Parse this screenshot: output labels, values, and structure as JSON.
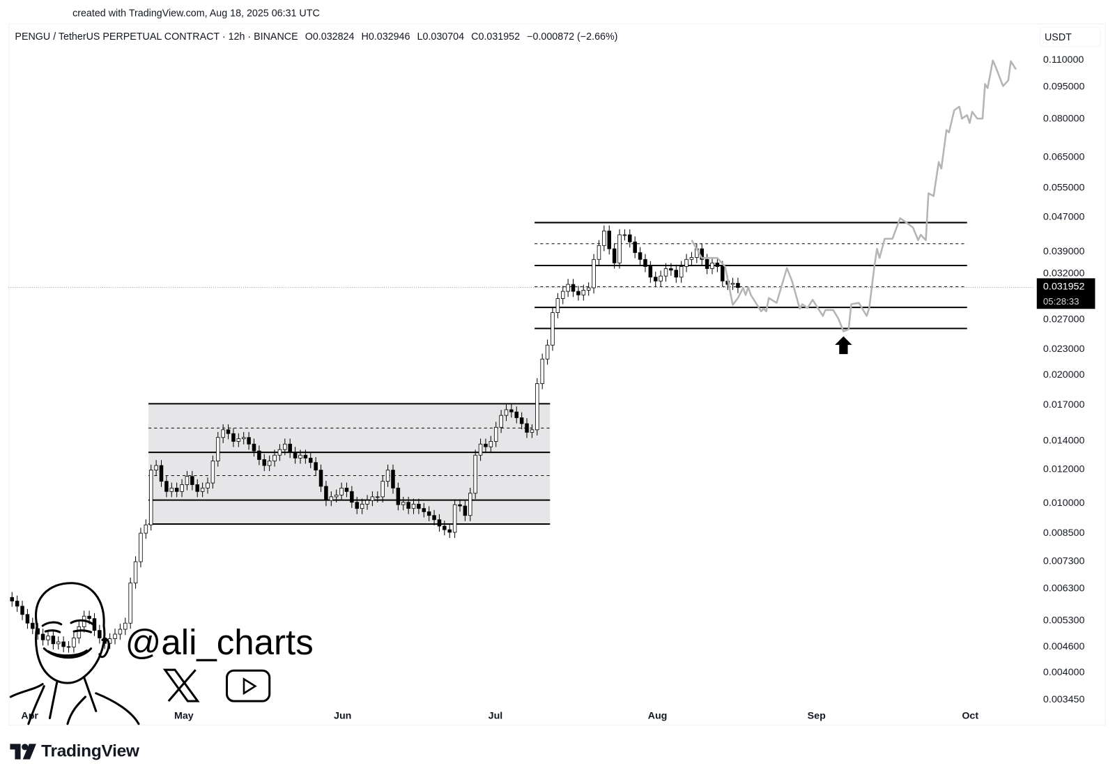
{
  "header": {
    "created_with": "created with TradingView.com, Aug 18, 2025 06:31 UTC",
    "symbol": "PENGU / TetherUS PERPETUAL CONTRACT · 12h · BINANCE",
    "open": "O0.032824",
    "high": "H0.032946",
    "low": "L0.030704",
    "close": "C0.031952",
    "change": "−0.000872 (−2.66%)"
  },
  "price_axis": {
    "currency_button": "USDT",
    "last_price": "0.031952",
    "countdown": "05:28:33"
  },
  "watermark": {
    "handle": "@ali_charts",
    "icons": [
      "avatar-illustration",
      "x-logo-icon",
      "youtube-icon"
    ]
  },
  "footer": {
    "brand": "TradingView"
  },
  "colors": {
    "candle_up_body": "#ffffff",
    "candle_down_body": "#000000",
    "candle_outline": "#000000",
    "projection": "#b4b4b4",
    "range_fill": "#e6e6e8",
    "level_line": "#000000",
    "last_price_label": "#000000"
  },
  "chart_data": {
    "type": "candlestick",
    "scale": "log",
    "ylim": [
      0.00345,
      0.11
    ],
    "xlim": [
      "2025-03-30",
      "2025-10-20"
    ],
    "grid": false,
    "y_ticks": [
      "0.110000",
      "0.095000",
      "0.080000",
      "0.065000",
      "0.055000",
      "0.047000",
      "0.039000",
      "0.032000",
      "0.027000",
      "0.023000",
      "0.020000",
      "0.017000",
      "0.014000",
      "0.012000",
      "0.010000",
      "0.008500",
      "0.007300",
      "0.006300",
      "0.005300",
      "0.004600",
      "0.004000",
      "0.003450"
    ],
    "x_ticks": [
      {
        "label": "Apr",
        "date": "2025-04-01"
      },
      {
        "label": "May",
        "date": "2025-05-01"
      },
      {
        "label": "Jun",
        "date": "2025-06-01"
      },
      {
        "label": "Jul",
        "date": "2025-07-01"
      },
      {
        "label": "Aug",
        "date": "2025-08-01"
      },
      {
        "label": "Sep",
        "date": "2025-09-01"
      },
      {
        "label": "Oct",
        "date": "2025-10-01"
      }
    ],
    "last_price": 0.031952,
    "candles_close": [
      [
        "2025-03-30",
        0.00586
      ],
      [
        "2025-03-31",
        0.0057
      ],
      [
        "2025-04-01",
        0.00545
      ],
      [
        "2025-04-02",
        0.0052
      ],
      [
        "2025-04-03",
        0.00505
      ],
      [
        "2025-04-04",
        0.0049
      ],
      [
        "2025-04-05",
        0.00475
      ],
      [
        "2025-04-06",
        0.00485
      ],
      [
        "2025-04-07",
        0.00465
      ],
      [
        "2025-04-08",
        0.0047
      ],
      [
        "2025-04-09",
        0.00458
      ],
      [
        "2025-04-10",
        0.00457
      ],
      [
        "2025-04-11",
        0.0048
      ],
      [
        "2025-04-12",
        0.0051
      ],
      [
        "2025-04-13",
        0.0054
      ],
      [
        "2025-04-14",
        0.00533
      ],
      [
        "2025-04-15",
        0.005
      ],
      [
        "2025-04-16",
        0.0048
      ],
      [
        "2025-04-17",
        0.00466
      ],
      [
        "2025-04-18",
        0.00478
      ],
      [
        "2025-04-19",
        0.0049
      ],
      [
        "2025-04-20",
        0.00503
      ],
      [
        "2025-04-21",
        0.0052
      ],
      [
        "2025-04-22",
        0.00646
      ],
      [
        "2025-04-23",
        0.00725
      ],
      [
        "2025-04-24",
        0.00846
      ],
      [
        "2025-04-25",
        0.00885
      ],
      [
        "2025-04-26",
        0.0119
      ],
      [
        "2025-04-27",
        0.0122
      ],
      [
        "2025-04-28",
        0.0112
      ],
      [
        "2025-04-29",
        0.0106
      ],
      [
        "2025-04-30",
        0.0108
      ],
      [
        "2025-05-01",
        0.0106
      ],
      [
        "2025-05-02",
        0.011
      ],
      [
        "2025-05-03",
        0.0115
      ],
      [
        "2025-05-04",
        0.011
      ],
      [
        "2025-05-05",
        0.0106
      ],
      [
        "2025-05-06",
        0.0108
      ],
      [
        "2025-05-07",
        0.0111
      ],
      [
        "2025-05-08",
        0.0125
      ],
      [
        "2025-05-09",
        0.0142
      ],
      [
        "2025-05-10",
        0.0148
      ],
      [
        "2025-05-11",
        0.0145
      ],
      [
        "2025-05-12",
        0.0139
      ],
      [
        "2025-05-13",
        0.0141
      ],
      [
        "2025-05-14",
        0.0142
      ],
      [
        "2025-05-15",
        0.0137
      ],
      [
        "2025-05-16",
        0.0132
      ],
      [
        "2025-05-17",
        0.0126
      ],
      [
        "2025-05-18",
        0.0122
      ],
      [
        "2025-05-19",
        0.0125
      ],
      [
        "2025-05-20",
        0.0129
      ],
      [
        "2025-05-21",
        0.0133
      ],
      [
        "2025-05-22",
        0.0137
      ],
      [
        "2025-05-23",
        0.0131
      ],
      [
        "2025-05-24",
        0.0127
      ],
      [
        "2025-05-25",
        0.0129
      ],
      [
        "2025-05-26",
        0.0127
      ],
      [
        "2025-05-27",
        0.0124
      ],
      [
        "2025-05-28",
        0.0119
      ],
      [
        "2025-05-29",
        0.0109
      ],
      [
        "2025-05-30",
        0.0101
      ],
      [
        "2025-05-31",
        0.0103
      ],
      [
        "2025-06-01",
        0.0104
      ],
      [
        "2025-06-02",
        0.0108
      ],
      [
        "2025-06-03",
        0.0106
      ],
      [
        "2025-06-04",
        0.01
      ],
      [
        "2025-06-05",
        0.00967
      ],
      [
        "2025-06-06",
        0.0099
      ],
      [
        "2025-06-07",
        0.0101
      ],
      [
        "2025-06-08",
        0.0103
      ],
      [
        "2025-06-09",
        0.0103
      ],
      [
        "2025-06-10",
        0.0112
      ],
      [
        "2025-06-11",
        0.0119
      ],
      [
        "2025-06-12",
        0.0108
      ],
      [
        "2025-06-13",
        0.00987
      ],
      [
        "2025-06-14",
        0.01
      ],
      [
        "2025-06-15",
        0.00967
      ],
      [
        "2025-06-16",
        0.0099
      ],
      [
        "2025-06-17",
        0.00967
      ],
      [
        "2025-06-18",
        0.0095
      ],
      [
        "2025-06-19",
        0.00931
      ],
      [
        "2025-06-20",
        0.0091
      ],
      [
        "2025-06-21",
        0.00879
      ],
      [
        "2025-06-22",
        0.00862
      ],
      [
        "2025-06-23",
        0.0085
      ],
      [
        "2025-06-24",
        0.00987
      ],
      [
        "2025-06-25",
        0.0098
      ],
      [
        "2025-06-26",
        0.00931
      ],
      [
        "2025-06-27",
        0.0105
      ],
      [
        "2025-06-28",
        0.0129
      ],
      [
        "2025-06-29",
        0.0137
      ],
      [
        "2025-06-30",
        0.0135
      ],
      [
        "2025-07-01",
        0.0139
      ],
      [
        "2025-07-02",
        0.015
      ],
      [
        "2025-07-03",
        0.016
      ],
      [
        "2025-07-04",
        0.0165
      ],
      [
        "2025-07-05",
        0.0163
      ],
      [
        "2025-07-06",
        0.0158
      ],
      [
        "2025-07-07",
        0.0153
      ],
      [
        "2025-07-08",
        0.0146
      ],
      [
        "2025-07-09",
        0.0148
      ],
      [
        "2025-07-10",
        0.019
      ],
      [
        "2025-07-11",
        0.0217
      ],
      [
        "2025-07-12",
        0.0234
      ],
      [
        "2025-07-13",
        0.0279
      ],
      [
        "2025-07-14",
        0.0301
      ],
      [
        "2025-07-15",
        0.0313
      ],
      [
        "2025-07-16",
        0.0325
      ],
      [
        "2025-07-17",
        0.0313
      ],
      [
        "2025-07-18",
        0.0307
      ],
      [
        "2025-07-19",
        0.0315
      ],
      [
        "2025-07-20",
        0.0319
      ],
      [
        "2025-07-21",
        0.0372
      ],
      [
        "2025-07-22",
        0.0401
      ],
      [
        "2025-07-23",
        0.0434
      ],
      [
        "2025-07-24",
        0.0394
      ],
      [
        "2025-07-25",
        0.0365
      ],
      [
        "2025-07-26",
        0.0425
      ],
      [
        "2025-07-27",
        0.0425
      ],
      [
        "2025-07-28",
        0.0409
      ],
      [
        "2025-07-29",
        0.0386
      ],
      [
        "2025-07-30",
        0.0372
      ],
      [
        "2025-07-31",
        0.0358
      ],
      [
        "2025-08-01",
        0.0338
      ],
      [
        "2025-08-02",
        0.0331
      ],
      [
        "2025-08-03",
        0.034
      ],
      [
        "2025-08-04",
        0.0354
      ],
      [
        "2025-08-05",
        0.0351
      ],
      [
        "2025-08-06",
        0.0338
      ],
      [
        "2025-08-07",
        0.0358
      ],
      [
        "2025-08-08",
        0.0372
      ],
      [
        "2025-08-09",
        0.0376
      ],
      [
        "2025-08-10",
        0.0394
      ],
      [
        "2025-08-11",
        0.0372
      ],
      [
        "2025-08-12",
        0.0354
      ],
      [
        "2025-08-13",
        0.0365
      ],
      [
        "2025-08-14",
        0.0358
      ],
      [
        "2025-08-15",
        0.0331
      ],
      [
        "2025-08-16",
        0.0325
      ],
      [
        "2025-08-17",
        0.0327
      ],
      [
        "2025-08-18",
        0.031952
      ]
    ],
    "projection_path": [
      [
        "2025-08-09T12",
        0.0413
      ],
      [
        "2025-08-11T12",
        0.0375
      ],
      [
        "2025-08-14T12",
        0.0375
      ],
      [
        "2025-08-16T00",
        0.0358
      ],
      [
        "2025-08-17T12",
        0.0291
      ],
      [
        "2025-08-18T12",
        0.0302
      ],
      [
        "2025-08-19T12",
        0.0319
      ],
      [
        "2025-08-20T00",
        0.0307
      ],
      [
        "2025-08-20T12",
        0.032
      ],
      [
        "2025-08-21T00",
        0.0307
      ],
      [
        "2025-08-23T00",
        0.0281
      ],
      [
        "2025-08-23T12",
        0.0285
      ],
      [
        "2025-08-24T00",
        0.0281
      ],
      [
        "2025-08-24T12",
        0.0302
      ],
      [
        "2025-08-26T00",
        0.0294
      ],
      [
        "2025-08-28T00",
        0.0355
      ],
      [
        "2025-08-29T00",
        0.0331
      ],
      [
        "2025-08-30T12",
        0.0285
      ],
      [
        "2025-08-31T00",
        0.0292
      ],
      [
        "2025-09-01T00",
        0.0286
      ],
      [
        "2025-09-02T00",
        0.0299
      ],
      [
        "2025-09-04T00",
        0.0274
      ],
      [
        "2025-09-04T12",
        0.0283
      ],
      [
        "2025-09-06T00",
        0.0283
      ],
      [
        "2025-09-07T00",
        0.027
      ],
      [
        "2025-09-08T00",
        0.0252
      ],
      [
        "2025-09-09T00",
        0.0255
      ],
      [
        "2025-09-09T12",
        0.0292
      ],
      [
        "2025-09-11T00",
        0.0294
      ],
      [
        "2025-09-12T12",
        0.0274
      ],
      [
        "2025-09-13T00",
        0.0286
      ],
      [
        "2025-09-14T00",
        0.0358
      ],
      [
        "2025-09-14T12",
        0.0394
      ],
      [
        "2025-09-15T00",
        0.0375
      ],
      [
        "2025-09-16T00",
        0.0416
      ],
      [
        "2025-09-17T12",
        0.0416
      ],
      [
        "2025-09-19T00",
        0.0465
      ],
      [
        "2025-09-20T00",
        0.0456
      ],
      [
        "2025-09-21T12",
        0.0442
      ],
      [
        "2025-09-22T12",
        0.0413
      ],
      [
        "2025-09-23T00",
        0.0425
      ],
      [
        "2025-09-24T00",
        0.0413
      ],
      [
        "2025-09-24T12",
        0.0532
      ],
      [
        "2025-09-25T12",
        0.0524
      ],
      [
        "2025-09-26T12",
        0.063
      ],
      [
        "2025-09-27T00",
        0.0608
      ],
      [
        "2025-09-28T00",
        0.0749
      ],
      [
        "2025-09-28T12",
        0.074
      ],
      [
        "2025-09-29T12",
        0.0834
      ],
      [
        "2025-09-30T12",
        0.085
      ],
      [
        "2025-10-01T00",
        0.0797
      ],
      [
        "2025-10-02T00",
        0.0812
      ],
      [
        "2025-10-02T12",
        0.0778
      ],
      [
        "2025-10-03T00",
        0.0827
      ],
      [
        "2025-10-04T00",
        0.0797
      ],
      [
        "2025-10-05T00",
        0.0797
      ],
      [
        "2025-10-05T12",
        0.0961
      ],
      [
        "2025-10-06T00",
        0.094
      ],
      [
        "2025-10-07T00",
        0.1091
      ],
      [
        "2025-10-07T12",
        0.1058
      ],
      [
        "2025-10-09T00",
        0.095
      ],
      [
        "2025-10-10T00",
        0.098
      ],
      [
        "2025-10-10T12",
        0.1087
      ],
      [
        "2025-10-11T12",
        0.104
      ]
    ],
    "ranges": [
      {
        "from": "2025-04-26",
        "to": "2025-07-13",
        "shaded": true,
        "levels": [
          {
            "price": 0.01704,
            "style": "solid"
          },
          {
            "price": 0.01494,
            "style": "dashed"
          },
          {
            "price": 0.0131,
            "style": "solid"
          },
          {
            "price": 0.01155,
            "style": "dashed"
          },
          {
            "price": 0.01012,
            "style": "solid"
          },
          {
            "price": 0.00889,
            "style": "solid"
          }
        ]
      },
      {
        "from": "2025-07-10",
        "to": "2025-10-02",
        "shaded": false,
        "levels": [
          {
            "price": 0.0454,
            "style": "solid"
          },
          {
            "price": 0.0405,
            "style": "dashed"
          },
          {
            "price": 0.036,
            "style": "solid"
          },
          {
            "price": 0.0321,
            "style": "dashed"
          },
          {
            "price": 0.0287,
            "style": "solid"
          },
          {
            "price": 0.0256,
            "style": "solid"
          }
        ]
      }
    ],
    "annotations": [
      {
        "type": "up-arrow",
        "date": "2025-09-08",
        "below_price": 0.0256
      }
    ]
  }
}
